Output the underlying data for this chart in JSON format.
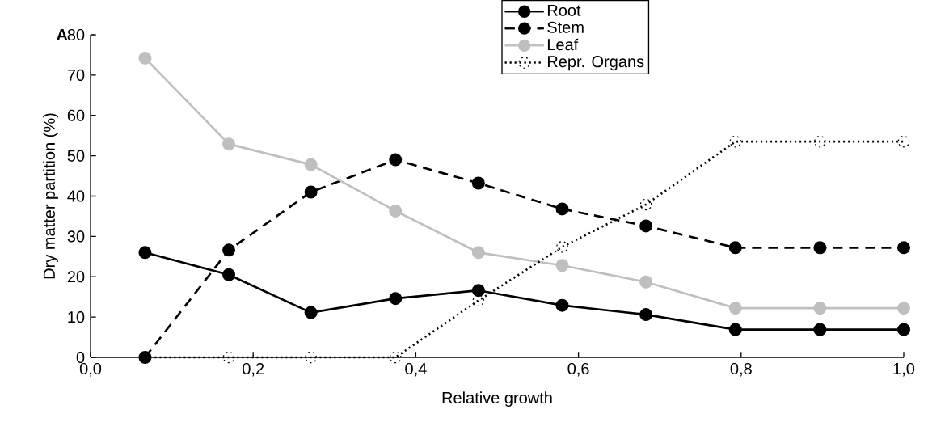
{
  "chart_data": {
    "type": "line",
    "xlabel": "Relative growth",
    "ylabel": "Dry matter partition (%)",
    "annotations": [
      "A"
    ],
    "x": [
      0.067,
      0.17,
      0.271,
      0.375,
      0.477,
      0.58,
      0.683,
      0.793,
      0.897,
      1.0
    ],
    "series": [
      {
        "name": "Root",
        "color": "#000000",
        "line_style": "solid",
        "values": [
          26.0,
          20.5,
          11.1,
          14.6,
          16.6,
          12.9,
          10.6,
          6.9,
          6.9,
          6.9
        ]
      },
      {
        "name": "Stem",
        "color": "#000000",
        "line_style": "dashed",
        "values": [
          0,
          26.6,
          41.0,
          49.0,
          43.2,
          36.8,
          32.6,
          27.2,
          27.2,
          27.2
        ]
      },
      {
        "name": "Leaf",
        "color": "#bfbfbf",
        "line_style": "solid",
        "values": [
          74.2,
          52.9,
          47.8,
          36.3,
          26.0,
          22.8,
          18.7,
          12.2,
          12.2,
          12.2
        ]
      },
      {
        "name": "Repr. Organs",
        "color": "#000000",
        "line_style": "dotted",
        "values": [
          0,
          0,
          0,
          0,
          14.1,
          27.4,
          37.9,
          53.5,
          53.5,
          53.5
        ]
      }
    ],
    "marker": "circle",
    "legend": "top",
    "grid": false,
    "xlim": [
      0,
      1.0
    ],
    "ylim": [
      0,
      80
    ],
    "xticks": [
      {
        "value": 0,
        "label": "0,0"
      },
      {
        "value": 0.2,
        "label": "0,2"
      },
      {
        "value": 0.4,
        "label": "0,4"
      },
      {
        "value": 0.6,
        "label": "0,6"
      },
      {
        "value": 0.8,
        "label": "0,8"
      },
      {
        "value": 1.0,
        "label": "1,0"
      }
    ],
    "yticks": [
      0,
      10,
      20,
      30,
      40,
      50,
      60,
      70,
      80
    ]
  }
}
